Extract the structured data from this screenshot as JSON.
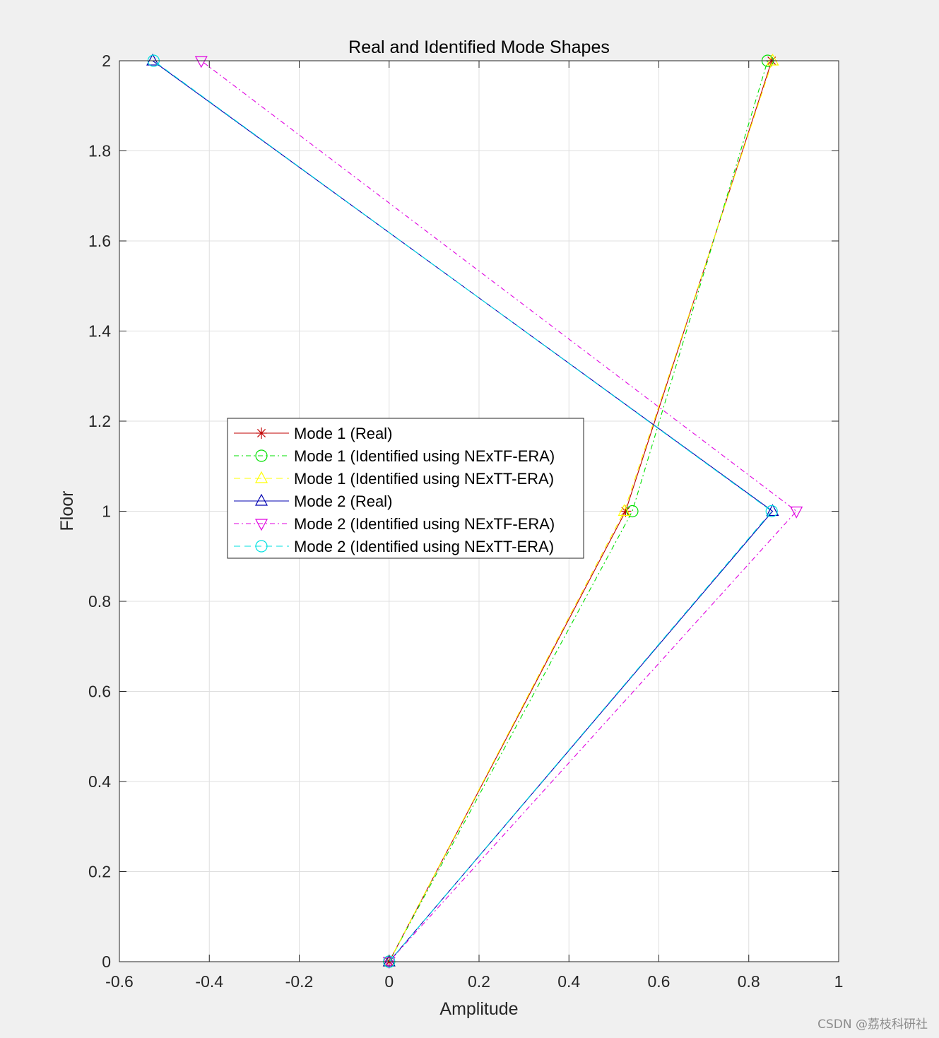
{
  "chart_data": {
    "type": "line",
    "title": "Real and Identified Mode Shapes",
    "xlabel": "Amplitude",
    "ylabel": "Floor",
    "xlim": [
      -0.6,
      1
    ],
    "ylim": [
      0,
      2
    ],
    "xticks": [
      -0.6,
      -0.4,
      -0.2,
      0,
      0.2,
      0.4,
      0.6,
      0.8,
      1
    ],
    "xtick_labels": [
      "-0.6",
      "-0.4",
      "-0.2",
      "0",
      "0.2",
      "0.4",
      "0.6",
      "0.8",
      "1"
    ],
    "yticks": [
      0,
      0.2,
      0.4,
      0.6,
      0.8,
      1,
      1.2,
      1.4,
      1.6,
      1.8,
      2
    ],
    "ytick_labels": [
      "0",
      "0.2",
      "0.4",
      "0.6",
      "0.8",
      "1",
      "1.2",
      "1.4",
      "1.6",
      "1.8",
      "2"
    ],
    "grid": true,
    "legend_position": "center-left",
    "series": [
      {
        "name": "Mode 1 (Real)",
        "x": [
          0,
          0.526,
          0.851
        ],
        "y": [
          0,
          1,
          2
        ],
        "color": "#c00000",
        "dash": "solid",
        "marker": "asterisk"
      },
      {
        "name": "Mode 1 (Identified using NExTF-ERA)",
        "x": [
          0,
          0.541,
          0.842
        ],
        "y": [
          0,
          1,
          2
        ],
        "color": "#00e000",
        "dash": "dashdot",
        "marker": "circle"
      },
      {
        "name": "Mode 1 (Identified using NExTT-ERA)",
        "x": [
          0,
          0.523,
          0.853
        ],
        "y": [
          0,
          1,
          2
        ],
        "color": "#ffff00",
        "dash": "dashed",
        "marker": "triangle-up"
      },
      {
        "name": "Mode 2 (Real)",
        "x": [
          0,
          0.853,
          -0.526
        ],
        "y": [
          0,
          1,
          2
        ],
        "color": "#0000b0",
        "dash": "solid",
        "marker": "triangle-up"
      },
      {
        "name": "Mode 2 (Identified using NExTF-ERA)",
        "x": [
          0,
          0.906,
          -0.418
        ],
        "y": [
          0,
          1,
          2
        ],
        "color": "#e000e0",
        "dash": "dashdot",
        "marker": "triangle-down"
      },
      {
        "name": "Mode 2 (Identified using NExTT-ERA)",
        "x": [
          0,
          0.851,
          -0.524
        ],
        "y": [
          0,
          1,
          2
        ],
        "color": "#00e0e0",
        "dash": "dashed",
        "marker": "circle"
      }
    ]
  },
  "watermark": "CSDN @荔枝科研社"
}
